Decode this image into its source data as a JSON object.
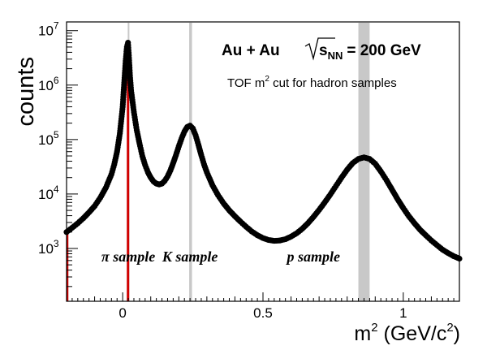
{
  "chart_data": {
    "type": "scatter",
    "ylabel": "counts",
    "xlabel_base": "m",
    "xlabel_sup": "2",
    "xlabel_units": "(GeV/c",
    "xlabel_units_sup": "2",
    "xlabel_close": ")",
    "y_log": true,
    "xlim": [
      -0.2,
      1.2
    ],
    "ylim_log10": [
      2.03,
      7.16
    ],
    "x_ticks": [
      {
        "value": 0,
        "label": "0"
      },
      {
        "value": 0.5,
        "label": "0.5"
      },
      {
        "value": 1,
        "label": "1"
      }
    ],
    "y_ticks": [
      {
        "exp": 3,
        "base": "10",
        "sup": "3"
      },
      {
        "exp": 4,
        "base": "10",
        "sup": "4"
      },
      {
        "exp": 5,
        "base": "10",
        "sup": "5"
      },
      {
        "exp": 6,
        "base": "10",
        "sup": "6"
      },
      {
        "exp": 7,
        "base": "10",
        "sup": "7"
      }
    ],
    "annotation": {
      "system": "Au + Au",
      "energy_var": "s",
      "energy_sub": "NN",
      "energy_value": "= 200 GeV",
      "subtitle_pre": "TOF m",
      "subtitle_sup": "2",
      "subtitle_post": " cut for hadron samples"
    },
    "samples": [
      {
        "label": "π sample",
        "label_x": 0.02,
        "band": [
          0.018,
          0.022
        ],
        "color": "#c8c8c8"
      },
      {
        "label": "K sample",
        "label_x": 0.24,
        "band": [
          0.237,
          0.247
        ],
        "color": "#c8c8c8"
      },
      {
        "label": "p sample",
        "label_x": 0.68,
        "band": [
          0.84,
          0.88
        ],
        "color": "#c8c8c8"
      }
    ],
    "red_histogram_color": "#d00000",
    "marker_color": "#000000",
    "series": [
      {
        "points": [
          [
            -0.2,
            2000
          ],
          [
            -0.18,
            2400
          ],
          [
            -0.16,
            2900
          ],
          [
            -0.14,
            3600
          ],
          [
            -0.12,
            4600
          ],
          [
            -0.1,
            6000
          ],
          [
            -0.08,
            8500
          ],
          [
            -0.06,
            13000
          ],
          [
            -0.04,
            23000
          ],
          [
            -0.03,
            35000
          ],
          [
            -0.02,
            60000
          ],
          [
            -0.01,
            130000
          ],
          [
            0.0,
            400000
          ],
          [
            0.005,
            1000000
          ],
          [
            0.01,
            2500000
          ],
          [
            0.015,
            5000000
          ],
          [
            0.019,
            6000000
          ],
          [
            0.022,
            3500000
          ],
          [
            0.026,
            1500000
          ],
          [
            0.03,
            800000
          ],
          [
            0.04,
            320000
          ],
          [
            0.05,
            150000
          ],
          [
            0.06,
            85000
          ],
          [
            0.07,
            50000
          ],
          [
            0.08,
            34000
          ],
          [
            0.09,
            25000
          ],
          [
            0.1,
            20000
          ],
          [
            0.11,
            17000
          ],
          [
            0.12,
            15500
          ],
          [
            0.13,
            15000
          ],
          [
            0.14,
            15500
          ],
          [
            0.15,
            17500
          ],
          [
            0.16,
            21000
          ],
          [
            0.17,
            27000
          ],
          [
            0.18,
            37000
          ],
          [
            0.19,
            52000
          ],
          [
            0.2,
            75000
          ],
          [
            0.21,
            105000
          ],
          [
            0.22,
            140000
          ],
          [
            0.23,
            170000
          ],
          [
            0.24,
            180000
          ],
          [
            0.25,
            160000
          ],
          [
            0.26,
            120000
          ],
          [
            0.27,
            80000
          ],
          [
            0.28,
            52000
          ],
          [
            0.29,
            35000
          ],
          [
            0.3,
            25000
          ],
          [
            0.32,
            14500
          ],
          [
            0.34,
            9500
          ],
          [
            0.36,
            6700
          ],
          [
            0.38,
            5000
          ],
          [
            0.4,
            3900
          ],
          [
            0.42,
            3100
          ],
          [
            0.44,
            2500
          ],
          [
            0.46,
            2050
          ],
          [
            0.48,
            1750
          ],
          [
            0.5,
            1550
          ],
          [
            0.52,
            1430
          ],
          [
            0.54,
            1380
          ],
          [
            0.56,
            1400
          ],
          [
            0.58,
            1480
          ],
          [
            0.6,
            1650
          ],
          [
            0.62,
            1900
          ],
          [
            0.64,
            2300
          ],
          [
            0.66,
            2900
          ],
          [
            0.68,
            3800
          ],
          [
            0.7,
            5100
          ],
          [
            0.72,
            7000
          ],
          [
            0.74,
            9800
          ],
          [
            0.76,
            14000
          ],
          [
            0.78,
            20000
          ],
          [
            0.8,
            28000
          ],
          [
            0.82,
            37000
          ],
          [
            0.84,
            44000
          ],
          [
            0.86,
            47000
          ],
          [
            0.88,
            44000
          ],
          [
            0.9,
            36000
          ],
          [
            0.92,
            26000
          ],
          [
            0.94,
            18000
          ],
          [
            0.96,
            12000
          ],
          [
            0.98,
            8000
          ],
          [
            1.0,
            5500
          ],
          [
            1.02,
            3900
          ],
          [
            1.04,
            2900
          ],
          [
            1.06,
            2200
          ],
          [
            1.08,
            1750
          ],
          [
            1.1,
            1400
          ],
          [
            1.12,
            1150
          ],
          [
            1.14,
            950
          ],
          [
            1.16,
            820
          ],
          [
            1.18,
            720
          ],
          [
            1.2,
            650
          ]
        ]
      }
    ]
  }
}
